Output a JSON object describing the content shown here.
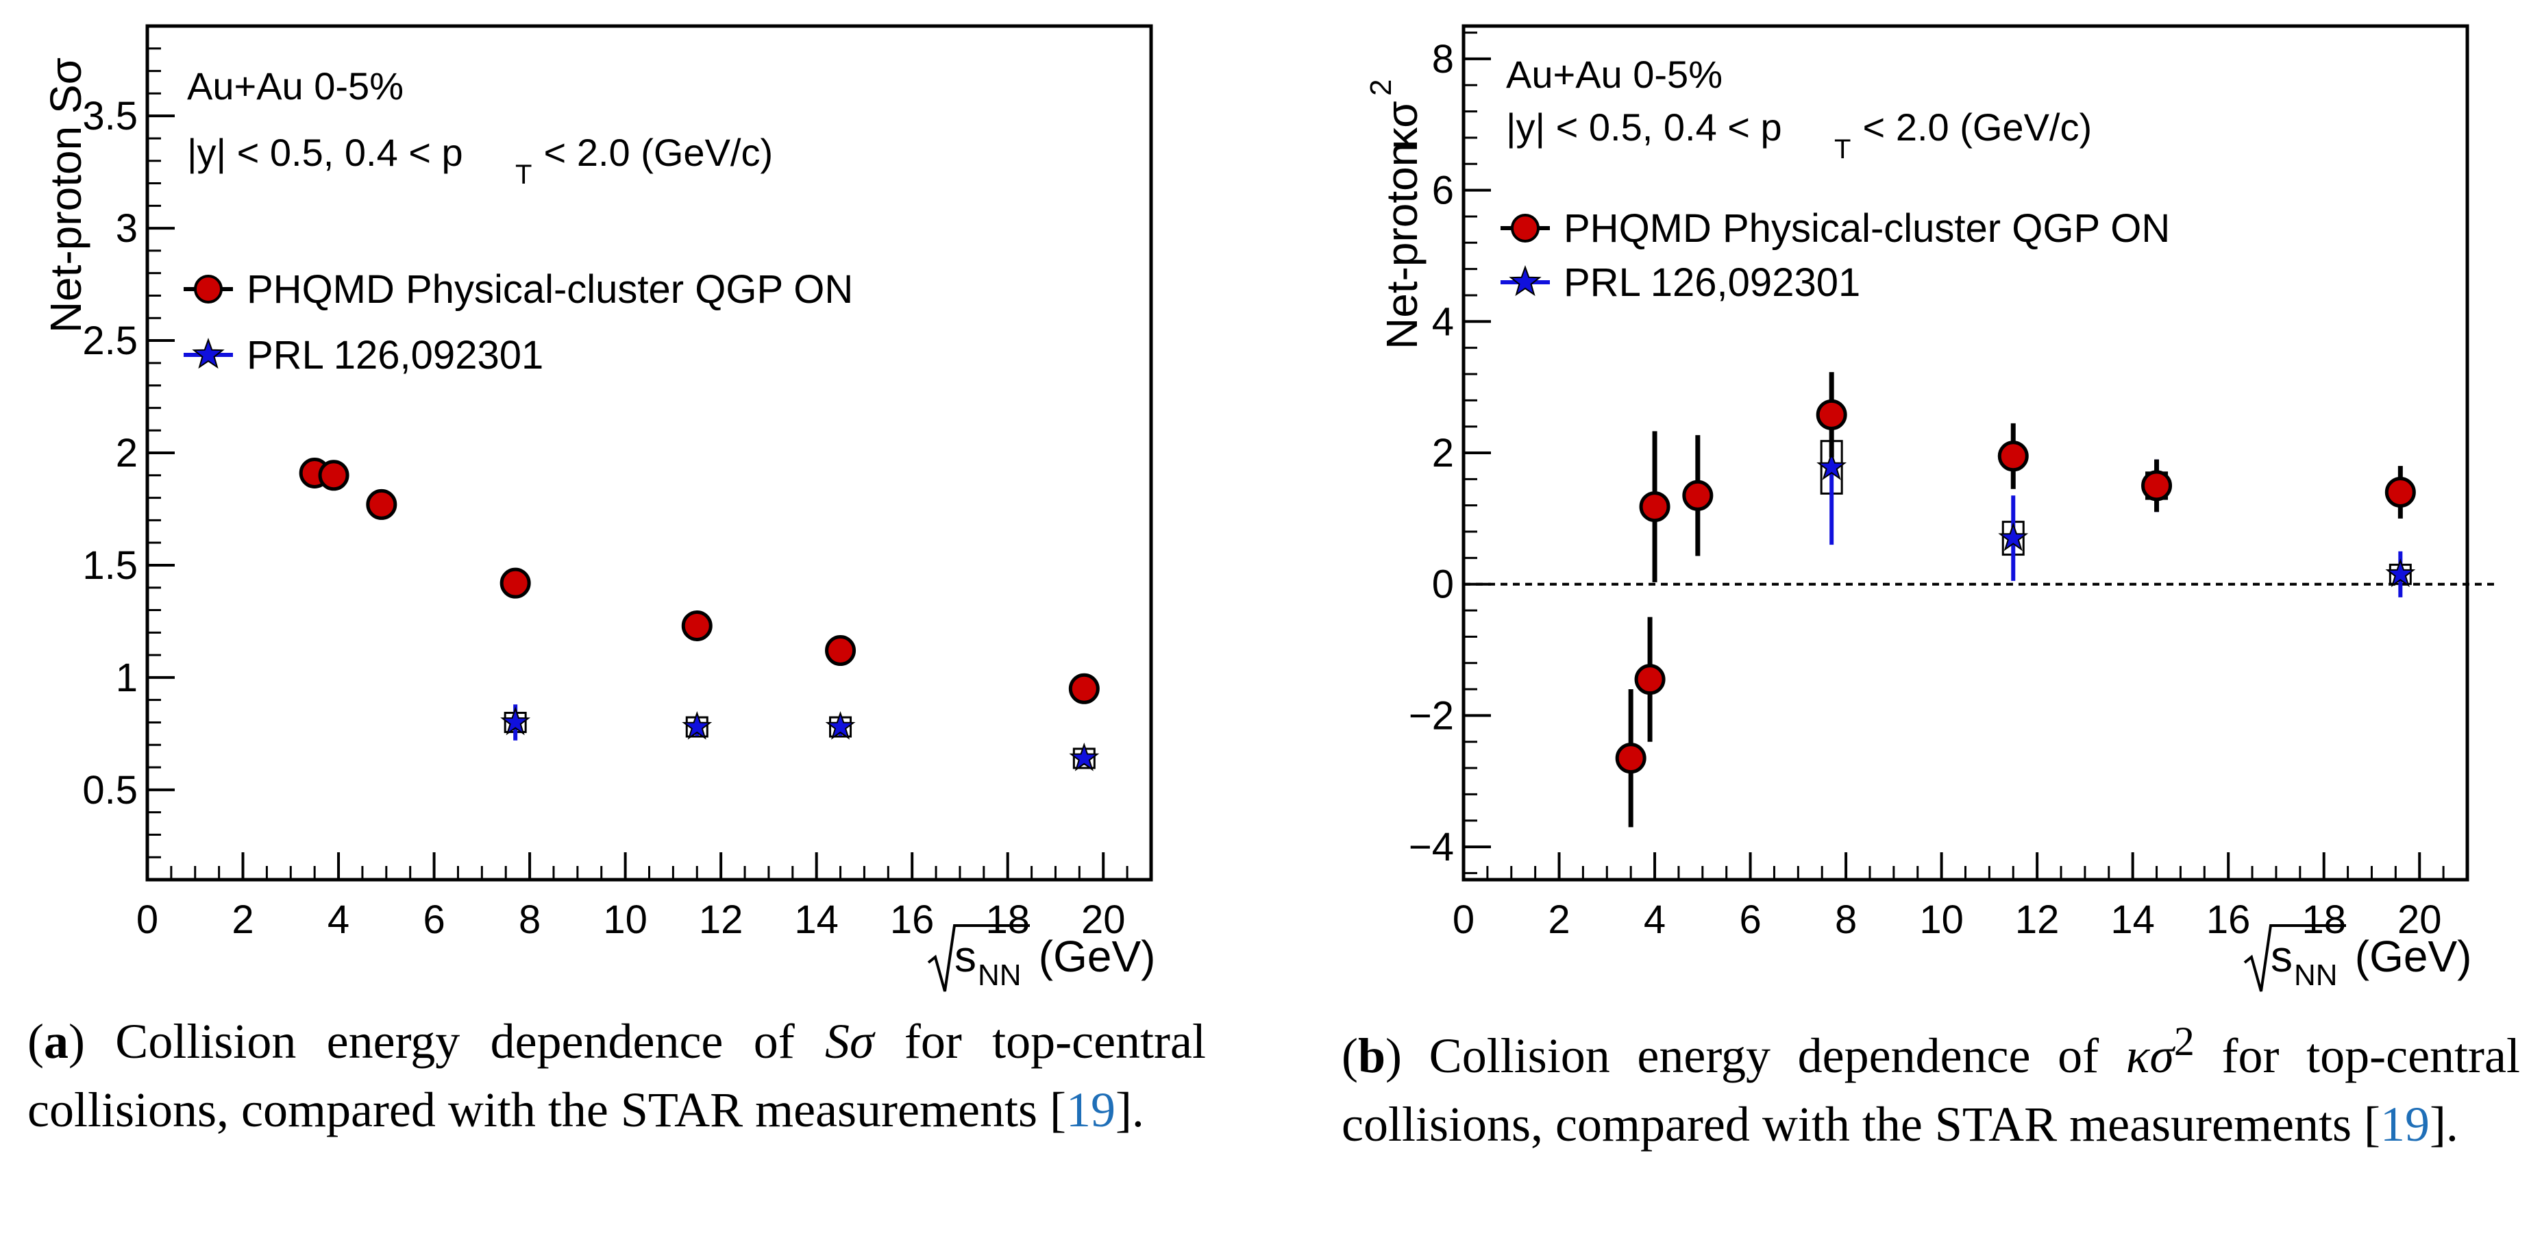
{
  "panels": [
    {
      "id": "a",
      "annotation": {
        "line1": "Au+Au 0-5%",
        "line2_prefix": "|y| < 0.5, 0.4 < p",
        "line2_sub": "T",
        "line2_suffix": " < 2.0 (GeV/c)"
      },
      "legend": [
        {
          "label": "PHQMD Physical-cluster QGP ON",
          "marker": "circle"
        },
        {
          "label": "PRL 126,092301",
          "marker": "star"
        }
      ],
      "caption": {
        "label": "a",
        "open": "(",
        "close": ")",
        "text_before": " Collision energy dependence of ",
        "math": "Sσ",
        "text_after": " for top-central collisions, compared with the STAR measurements [",
        "ref": "19",
        "end": "]."
      }
    },
    {
      "id": "b",
      "annotation": {
        "line1": "Au+Au 0-5%",
        "line2_prefix": "|y| < 0.5, 0.4 < p",
        "line2_sub": "T",
        "line2_suffix": " < 2.0 (GeV/c)"
      },
      "legend": [
        {
          "label": "PHQMD Physical-cluster QGP ON",
          "marker": "circle"
        },
        {
          "label": "PRL 126,092301",
          "marker": "star"
        }
      ],
      "caption": {
        "label": "b",
        "open": "(",
        "close": ")",
        "text_before": " Collision energy dependence of ",
        "math": "κσ",
        "math_sup": "2",
        "text_after": " for top-central collisions, compared with the STAR measurements [",
        "ref": "19",
        "end": "]."
      }
    }
  ],
  "colors": {
    "phqmd": "#cc0000",
    "star": "#1010dd",
    "axis": "#000000"
  },
  "chart_data": [
    {
      "type": "scatter",
      "title": "",
      "ylabel": "Net-proton Sσ",
      "xlabel_sqrt": "s",
      "xlabel_sub": "NN",
      "xlabel_unit": " (GeV)",
      "xlim": [
        0,
        21
      ],
      "ylim": [
        0.1,
        3.9
      ],
      "xticks": [
        0,
        2,
        4,
        6,
        8,
        10,
        12,
        14,
        16,
        18,
        20
      ],
      "xtick_labels": [
        "0",
        "2",
        "4",
        "6",
        "8",
        "10",
        "12",
        "14",
        "16",
        "18",
        "20"
      ],
      "yticks": [
        0.5,
        1,
        1.5,
        2,
        2.5,
        3,
        3.5
      ],
      "ytick_labels": [
        "0.5",
        "1",
        "1.5",
        "2",
        "2.5",
        "3",
        "3.5"
      ],
      "zero_line": false,
      "series": [
        {
          "name": "PHQMD Physical-cluster QGP ON",
          "marker": "circle",
          "x": [
            3.5,
            3.9,
            4.9,
            7.7,
            11.5,
            14.5,
            19.6
          ],
          "y": [
            1.91,
            1.9,
            1.77,
            1.42,
            1.23,
            1.12,
            0.95
          ],
          "err": [
            0,
            0,
            0,
            0,
            0,
            0,
            0
          ]
        },
        {
          "name": "PRL 126,092301",
          "marker": "star",
          "x": [
            7.7,
            11.5,
            14.5,
            19.6
          ],
          "y": [
            0.8,
            0.78,
            0.78,
            0.64
          ],
          "err": [
            0.08,
            0.04,
            0.04,
            0.03
          ],
          "sys": [
            0.04,
            0.03,
            0.03,
            0.02
          ]
        }
      ]
    },
    {
      "type": "scatter",
      "title": "",
      "ylabel_main": "Net-proton",
      "ylabel_kappa": "κσ",
      "ylabel_sup": "2",
      "xlabel_sqrt": "s",
      "xlabel_sub": "NN",
      "xlabel_unit": " (GeV)",
      "xlim": [
        0,
        21
      ],
      "ylim": [
        -4.5,
        8.5
      ],
      "xticks": [
        0,
        2,
        4,
        6,
        8,
        10,
        12,
        14,
        16,
        18,
        20
      ],
      "xtick_labels": [
        "0",
        "2",
        "4",
        "6",
        "8",
        "10",
        "12",
        "14",
        "16",
        "18",
        "20"
      ],
      "yticks": [
        -4,
        -2,
        0,
        2,
        4,
        6,
        8
      ],
      "ytick_labels": [
        "−4",
        "−2",
        "0",
        "2",
        "4",
        "6",
        "8"
      ],
      "zero_line": true,
      "series": [
        {
          "name": "PHQMD Physical-cluster QGP ON",
          "marker": "circle",
          "x": [
            3.5,
            3.9,
            4.0,
            4.9,
            7.7,
            11.5,
            14.5,
            19.6
          ],
          "y": [
            -2.65,
            -1.45,
            1.18,
            1.35,
            2.58,
            1.95,
            1.5,
            1.4
          ],
          "err": [
            1.05,
            0.95,
            1.15,
            0.92,
            0.65,
            0.5,
            0.4,
            0.4
          ]
        },
        {
          "name": "PRL 126,092301",
          "marker": "star",
          "x": [
            7.7,
            11.5,
            14.5,
            19.6
          ],
          "y": [
            1.78,
            0.7,
            1.5,
            0.15
          ],
          "err": [
            1.18,
            0.65,
            0.4,
            0.35
          ],
          "sys": [
            0.4,
            0.25,
            0.2,
            0.12
          ]
        }
      ]
    }
  ]
}
